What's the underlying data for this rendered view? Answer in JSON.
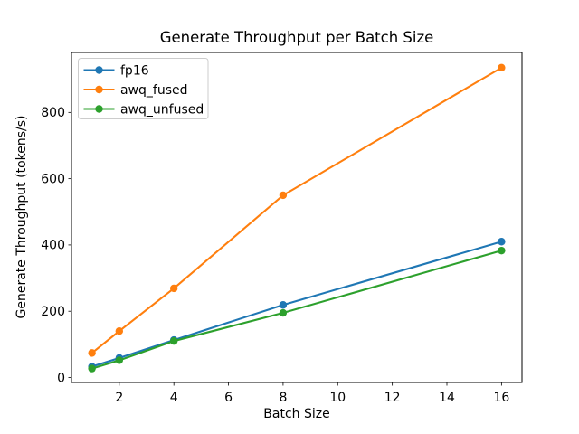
{
  "chart_data": {
    "type": "line",
    "title": "Generate Throughput per Batch Size",
    "xlabel": "Batch Size",
    "ylabel": "Generate Throughput (tokens/s)",
    "x": [
      1,
      2,
      4,
      8,
      16
    ],
    "series": [
      {
        "name": "fp16",
        "color": "#1f77b4",
        "values": [
          33,
          59,
          113,
          219,
          410
        ]
      },
      {
        "name": "awq_fused",
        "color": "#ff7f0e",
        "values": [
          74,
          140,
          269,
          550,
          935
        ]
      },
      {
        "name": "awq_unfused",
        "color": "#2ca02c",
        "values": [
          27,
          52,
          110,
          195,
          383
        ]
      }
    ],
    "xticks": [
      2,
      4,
      6,
      8,
      10,
      12,
      14,
      16
    ],
    "yticks": [
      0,
      200,
      400,
      600,
      800
    ],
    "xlim": [
      0.25,
      16.75
    ],
    "ylim": [
      -15,
      981
    ],
    "grid": false,
    "marker": "circle",
    "line_width": 2.1,
    "marker_radius": 4.2,
    "legend": {
      "position": "upper left",
      "entries": [
        "fp16",
        "awq_fused",
        "awq_unfused"
      ],
      "border_color": "#cccccc",
      "background": "#ffffff"
    },
    "spine_color": "#000000",
    "background_color": "#ffffff"
  }
}
